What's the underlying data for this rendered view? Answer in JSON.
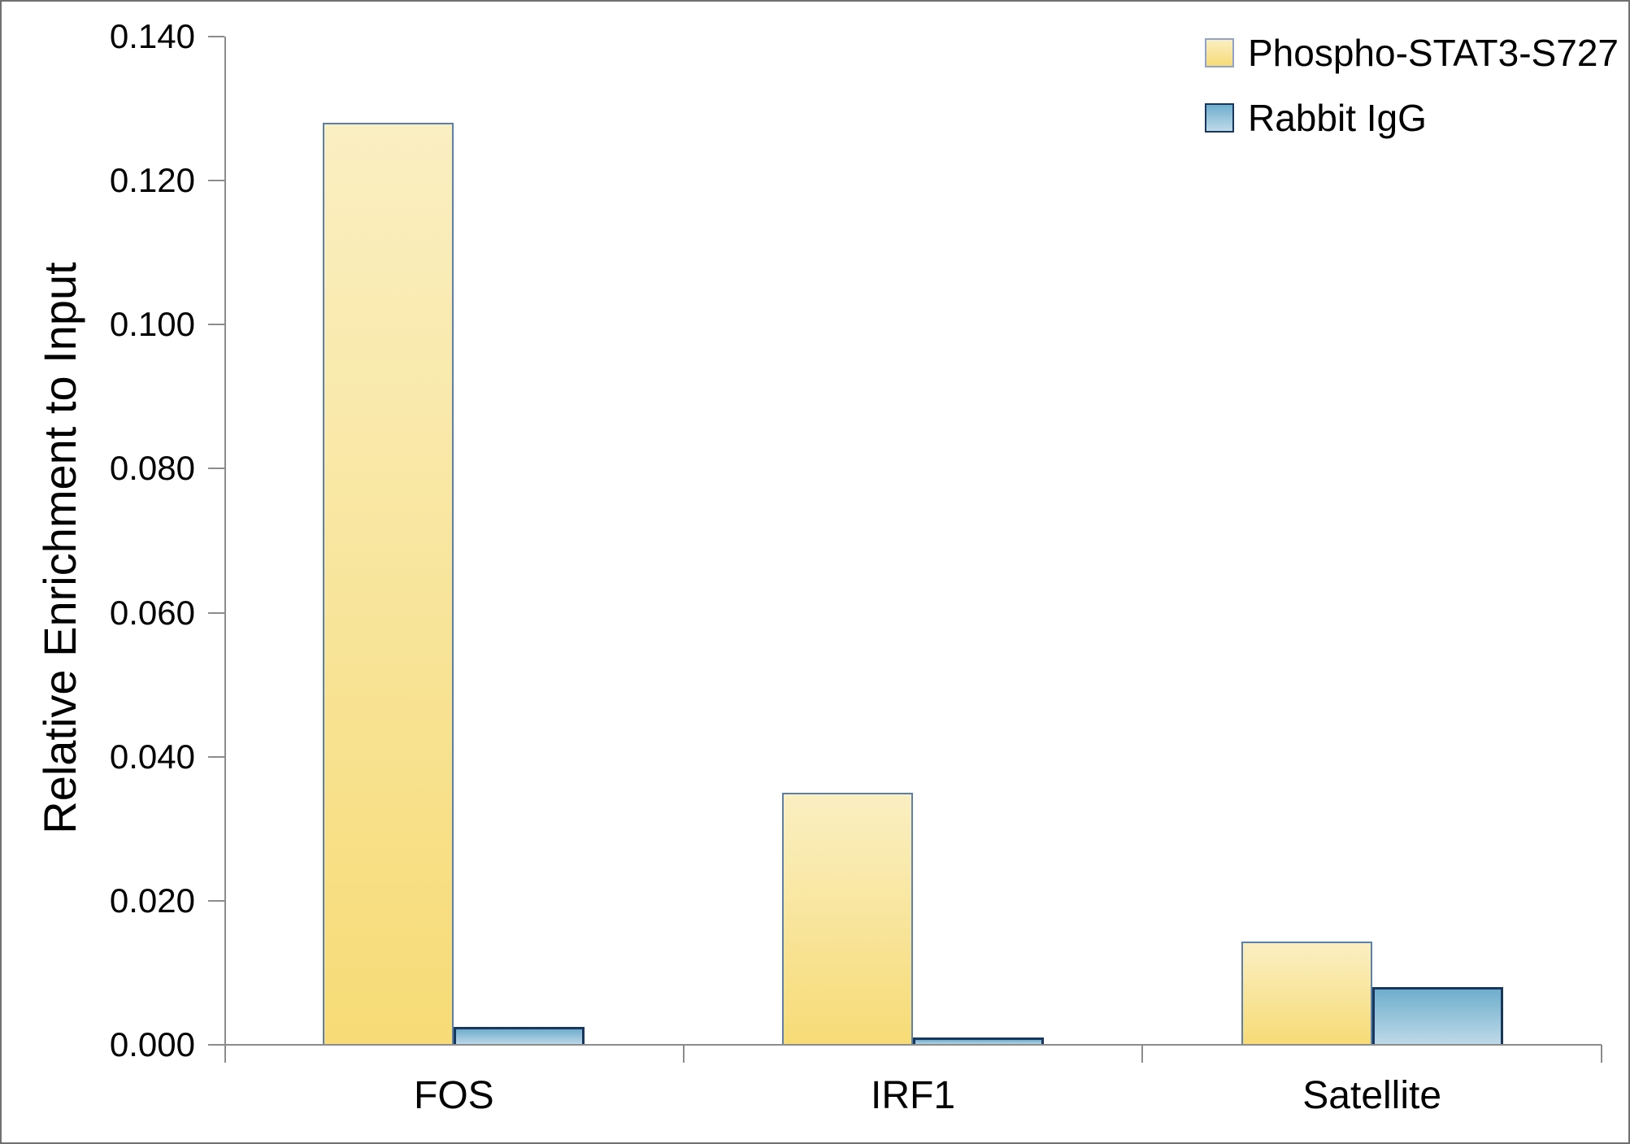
{
  "chart_data": {
    "type": "bar",
    "title": "",
    "xlabel": "",
    "ylabel": "Relative Enrichment to Input",
    "categories": [
      "FOS",
      "IRF1",
      "Satellite"
    ],
    "series": [
      {
        "name": "Phospho-STAT3-S727",
        "values": [
          0.128,
          0.035,
          0.0143
        ],
        "fill_top": "#FAEFC2",
        "fill_bottom": "#F7DB76",
        "border_color": "#5B80AC",
        "legend_border_color": "#8EA4CE"
      },
      {
        "name": "Rabbit IgG",
        "values": [
          0.0025,
          0.001,
          0.008
        ],
        "fill_top": "#6FAECC",
        "fill_bottom": "#BFDAE9",
        "border_color": "#17375E",
        "legend_border_color": "#17375E"
      }
    ],
    "ylim": [
      0,
      0.14
    ],
    "ytick_step": 0.02,
    "ytick_labels": [
      "0.000",
      "0.020",
      "0.040",
      "0.060",
      "0.080",
      "0.100",
      "0.120",
      "0.140"
    ],
    "grid": false,
    "legend_position": "top-right",
    "axis_color": "#8C8C8C",
    "text_color": "#000000"
  }
}
